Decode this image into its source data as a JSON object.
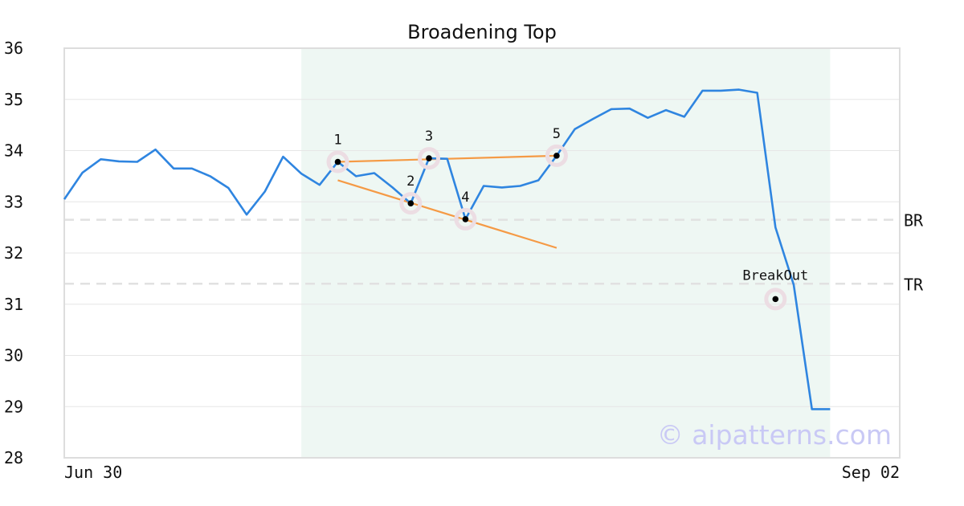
{
  "chart_data": {
    "type": "line",
    "title": "Broadening Top",
    "xlabel": "",
    "ylabel": "",
    "x_tick_labels": [
      "Jun 30",
      "Sep 02"
    ],
    "y_ticks": [
      28,
      29,
      30,
      31,
      32,
      33,
      34,
      35,
      36
    ],
    "ylim": [
      28,
      36
    ],
    "grid": "horizontal",
    "series": [
      {
        "values": [
          33.05,
          33.57,
          33.83,
          33.79,
          33.78,
          34.02,
          33.65,
          33.65,
          33.5,
          33.27,
          32.75,
          33.2,
          33.88,
          33.55,
          33.33,
          33.78,
          33.5,
          33.56,
          33.28,
          32.97,
          33.85,
          33.84,
          32.66,
          33.31,
          33.28,
          33.31,
          33.42,
          33.9,
          34.42,
          34.62,
          34.81,
          34.82,
          34.64,
          34.79,
          34.66,
          35.17,
          35.17,
          35.19,
          35.13,
          32.5,
          31.38,
          28.95,
          28.95
        ],
        "color": "#2f85e0"
      }
    ],
    "highlight_range_index": [
      13,
      42
    ],
    "pattern_points": [
      {
        "label": "1",
        "index": 15,
        "value": 33.78
      },
      {
        "label": "2",
        "index": 19,
        "value": 32.97
      },
      {
        "label": "3",
        "index": 20,
        "value": 33.85
      },
      {
        "label": "4",
        "index": 22,
        "value": 32.66
      },
      {
        "label": "5",
        "index": 27,
        "value": 33.9
      }
    ],
    "trend_lines": [
      {
        "from": [
          15,
          33.78
        ],
        "to": [
          27,
          33.9
        ],
        "color": "#f59a45"
      },
      {
        "from": [
          15,
          33.42
        ],
        "to": [
          27,
          32.1
        ],
        "color": "#f59a45"
      }
    ],
    "levels": [
      {
        "label": "BR",
        "value": 32.65
      },
      {
        "label": "TR",
        "value": 31.4
      }
    ],
    "breakout": {
      "label": "BreakOut",
      "index": 39,
      "value": 31.1
    },
    "watermark": "© aipatterns.com"
  }
}
